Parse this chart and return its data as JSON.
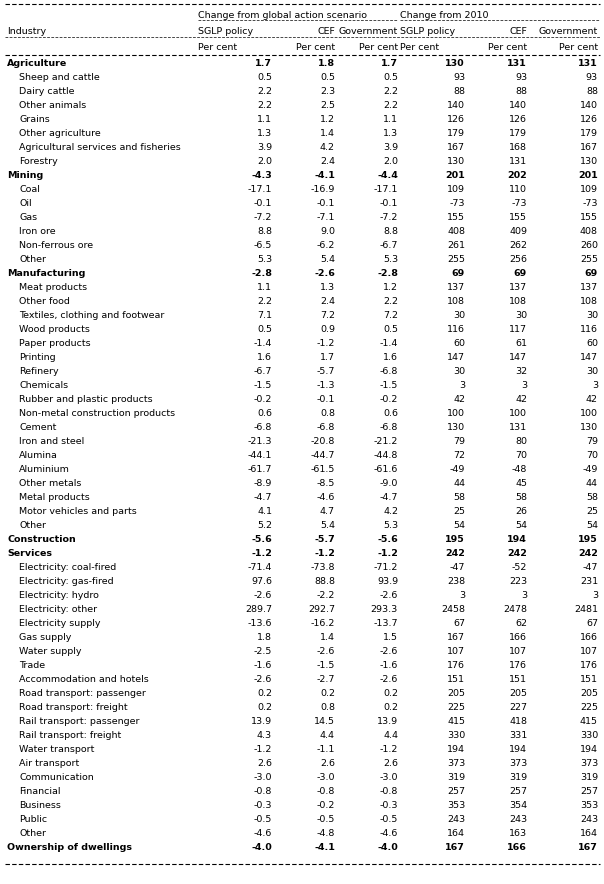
{
  "rows": [
    [
      "Agriculture",
      "1.7",
      "1.8",
      "1.7",
      "130",
      "131",
      "131",
      true,
      true
    ],
    [
      "Sheep and cattle",
      "0.5",
      "0.5",
      "0.5",
      "93",
      "93",
      "93",
      false,
      false
    ],
    [
      "Dairy cattle",
      "2.2",
      "2.3",
      "2.2",
      "88",
      "88",
      "88",
      false,
      false
    ],
    [
      "Other animals",
      "2.2",
      "2.5",
      "2.2",
      "140",
      "140",
      "140",
      false,
      false
    ],
    [
      "Grains",
      "1.1",
      "1.2",
      "1.1",
      "126",
      "126",
      "126",
      false,
      false
    ],
    [
      "Other agriculture",
      "1.3",
      "1.4",
      "1.3",
      "179",
      "179",
      "179",
      false,
      false
    ],
    [
      "Agricultural services and fisheries",
      "3.9",
      "4.2",
      "3.9",
      "167",
      "168",
      "167",
      false,
      false
    ],
    [
      "Forestry",
      "2.0",
      "2.4",
      "2.0",
      "130",
      "131",
      "130",
      false,
      false
    ],
    [
      "Mining",
      "-4.3",
      "-4.1",
      "-4.4",
      "201",
      "202",
      "201",
      true,
      true
    ],
    [
      "Coal",
      "-17.1",
      "-16.9",
      "-17.1",
      "109",
      "110",
      "109",
      false,
      false
    ],
    [
      "Oil",
      "-0.1",
      "-0.1",
      "-0.1",
      "-73",
      "-73",
      "-73",
      false,
      false
    ],
    [
      "Gas",
      "-7.2",
      "-7.1",
      "-7.2",
      "155",
      "155",
      "155",
      false,
      false
    ],
    [
      "Iron ore",
      "8.8",
      "9.0",
      "8.8",
      "408",
      "409",
      "408",
      false,
      false
    ],
    [
      "Non-ferrous ore",
      "-6.5",
      "-6.2",
      "-6.7",
      "261",
      "262",
      "260",
      false,
      false
    ],
    [
      "Other",
      "5.3",
      "5.4",
      "5.3",
      "255",
      "256",
      "255",
      false,
      false
    ],
    [
      "Manufacturing",
      "-2.8",
      "-2.6",
      "-2.8",
      "69",
      "69",
      "69",
      true,
      true
    ],
    [
      "Meat products",
      "1.1",
      "1.3",
      "1.2",
      "137",
      "137",
      "137",
      false,
      false
    ],
    [
      "Other food",
      "2.2",
      "2.4",
      "2.2",
      "108",
      "108",
      "108",
      false,
      false
    ],
    [
      "Textiles, clothing and footwear",
      "7.1",
      "7.2",
      "7.2",
      "30",
      "30",
      "30",
      false,
      false
    ],
    [
      "Wood products",
      "0.5",
      "0.9",
      "0.5",
      "116",
      "117",
      "116",
      false,
      false
    ],
    [
      "Paper products",
      "-1.4",
      "-1.2",
      "-1.4",
      "60",
      "61",
      "60",
      false,
      false
    ],
    [
      "Printing",
      "1.6",
      "1.7",
      "1.6",
      "147",
      "147",
      "147",
      false,
      false
    ],
    [
      "Refinery",
      "-6.7",
      "-5.7",
      "-6.8",
      "30",
      "32",
      "30",
      false,
      false
    ],
    [
      "Chemicals",
      "-1.5",
      "-1.3",
      "-1.5",
      "3",
      "3",
      "3",
      false,
      false
    ],
    [
      "Rubber and plastic products",
      "-0.2",
      "-0.1",
      "-0.2",
      "42",
      "42",
      "42",
      false,
      false
    ],
    [
      "Non-metal construction products",
      "0.6",
      "0.8",
      "0.6",
      "100",
      "100",
      "100",
      false,
      false
    ],
    [
      "Cement",
      "-6.8",
      "-6.8",
      "-6.8",
      "130",
      "131",
      "130",
      false,
      false
    ],
    [
      "Iron and steel",
      "-21.3",
      "-20.8",
      "-21.2",
      "79",
      "80",
      "79",
      false,
      false
    ],
    [
      "Alumina",
      "-44.1",
      "-44.7",
      "-44.8",
      "72",
      "70",
      "70",
      false,
      false
    ],
    [
      "Aluminium",
      "-61.7",
      "-61.5",
      "-61.6",
      "-49",
      "-48",
      "-49",
      false,
      false
    ],
    [
      "Other metals",
      "-8.9",
      "-8.5",
      "-9.0",
      "44",
      "45",
      "44",
      false,
      false
    ],
    [
      "Metal products",
      "-4.7",
      "-4.6",
      "-4.7",
      "58",
      "58",
      "58",
      false,
      false
    ],
    [
      "Motor vehicles and parts",
      "4.1",
      "4.7",
      "4.2",
      "25",
      "26",
      "25",
      false,
      false
    ],
    [
      "Other",
      "5.2",
      "5.4",
      "5.3",
      "54",
      "54",
      "54",
      false,
      false
    ],
    [
      "Construction",
      "-5.6",
      "-5.7",
      "-5.6",
      "195",
      "194",
      "195",
      true,
      true
    ],
    [
      "Services",
      "-1.2",
      "-1.2",
      "-1.2",
      "242",
      "242",
      "242",
      true,
      true
    ],
    [
      "Electricity: coal-fired",
      "-71.4",
      "-73.8",
      "-71.2",
      "-47",
      "-52",
      "-47",
      false,
      false
    ],
    [
      "Electricity: gas-fired",
      "97.6",
      "88.8",
      "93.9",
      "238",
      "223",
      "231",
      false,
      false
    ],
    [
      "Electricity: hydro",
      "-2.6",
      "-2.2",
      "-2.6",
      "3",
      "3",
      "3",
      false,
      false
    ],
    [
      "Electricity: other",
      "289.7",
      "292.7",
      "293.3",
      "2458",
      "2478",
      "2481",
      false,
      false
    ],
    [
      "Electricity supply",
      "-13.6",
      "-16.2",
      "-13.7",
      "67",
      "62",
      "67",
      false,
      false
    ],
    [
      "Gas supply",
      "1.8",
      "1.4",
      "1.5",
      "167",
      "166",
      "166",
      false,
      false
    ],
    [
      "Water supply",
      "-2.5",
      "-2.6",
      "-2.6",
      "107",
      "107",
      "107",
      false,
      false
    ],
    [
      "Trade",
      "-1.6",
      "-1.5",
      "-1.6",
      "176",
      "176",
      "176",
      false,
      false
    ],
    [
      "Accommodation and hotels",
      "-2.6",
      "-2.7",
      "-2.6",
      "151",
      "151",
      "151",
      false,
      false
    ],
    [
      "Road transport: passenger",
      "0.2",
      "0.2",
      "0.2",
      "205",
      "205",
      "205",
      false,
      false
    ],
    [
      "Road transport: freight",
      "0.2",
      "0.8",
      "0.2",
      "225",
      "227",
      "225",
      false,
      false
    ],
    [
      "Rail transport: passenger",
      "13.9",
      "14.5",
      "13.9",
      "415",
      "418",
      "415",
      false,
      false
    ],
    [
      "Rail transport: freight",
      "4.3",
      "4.4",
      "4.4",
      "330",
      "331",
      "330",
      false,
      false
    ],
    [
      "Water transport",
      "-1.2",
      "-1.1",
      "-1.2",
      "194",
      "194",
      "194",
      false,
      false
    ],
    [
      "Air transport",
      "2.6",
      "2.6",
      "2.6",
      "373",
      "373",
      "373",
      false,
      false
    ],
    [
      "Communication",
      "-3.0",
      "-3.0",
      "-3.0",
      "319",
      "319",
      "319",
      false,
      false
    ],
    [
      "Financial",
      "-0.8",
      "-0.8",
      "-0.8",
      "257",
      "257",
      "257",
      false,
      false
    ],
    [
      "Business",
      "-0.3",
      "-0.2",
      "-0.3",
      "353",
      "354",
      "353",
      false,
      false
    ],
    [
      "Public",
      "-0.5",
      "-0.5",
      "-0.5",
      "243",
      "243",
      "243",
      false,
      false
    ],
    [
      "Other",
      "-4.6",
      "-4.8",
      "-4.6",
      "164",
      "163",
      "164",
      false,
      false
    ],
    [
      "Ownership of dwellings",
      "-4.0",
      "-4.1",
      "-4.0",
      "167",
      "166",
      "167",
      true,
      true
    ]
  ],
  "indented": [
    1,
    2,
    3,
    4,
    5,
    6,
    7,
    9,
    10,
    11,
    12,
    13,
    14,
    16,
    17,
    18,
    19,
    20,
    21,
    22,
    23,
    24,
    25,
    26,
    27,
    28,
    29,
    30,
    31,
    32,
    33,
    36,
    37,
    38,
    39,
    40,
    41,
    42,
    43,
    44,
    45,
    46,
    47,
    48,
    49,
    50,
    51,
    52,
    53,
    54,
    55
  ],
  "background_color": "#ffffff"
}
